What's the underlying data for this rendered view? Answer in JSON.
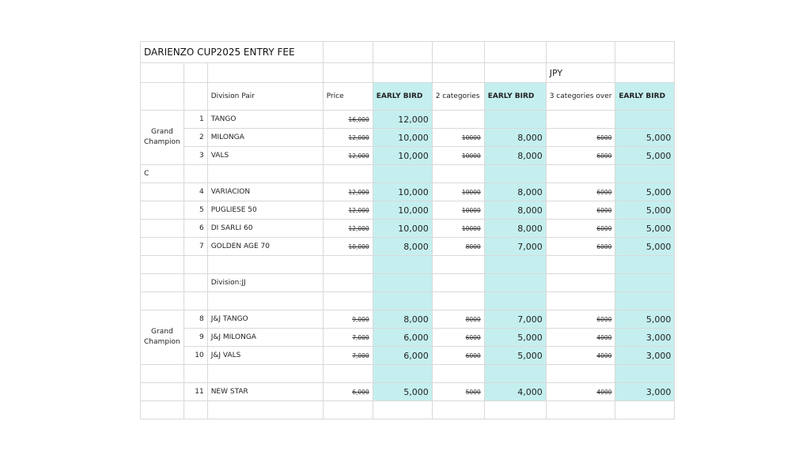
{
  "title": "DARIENZO CUP2025 ENTRY FEE",
  "currency": "JPY",
  "headers": {
    "division": "Division Pair",
    "price": "Price",
    "early_bird": "EARLY BIRD",
    "two_categories": "2 categories",
    "three_categories": "3 categories over"
  },
  "group_grand": "Grand Champion",
  "section_c": "C",
  "division_jj": "Division:JJ",
  "rows": {
    "r1": {
      "no": "1",
      "name": "TANGO",
      "price": "16,000",
      "eb1": "12,000",
      "cat2": "",
      "eb2": "",
      "cat3": "",
      "eb3": ""
    },
    "r2": {
      "no": "2",
      "name": "MILONGA",
      "price": "12,000",
      "eb1": "10,000",
      "cat2": "10000",
      "eb2": "8,000",
      "cat3": "6000",
      "eb3": "5,000"
    },
    "r3": {
      "no": "3",
      "name": "VALS",
      "price": "12,000",
      "eb1": "10,000",
      "cat2": "10000",
      "eb2": "8,000",
      "cat3": "6000",
      "eb3": "5,000"
    },
    "r4": {
      "no": "4",
      "name": "VARIACION",
      "price": "12,000",
      "eb1": "10,000",
      "cat2": "10000",
      "eb2": "8,000",
      "cat3": "6000",
      "eb3": "5,000"
    },
    "r5": {
      "no": "5",
      "name": "PUGLIESE 50",
      "price": "12,000",
      "eb1": "10,000",
      "cat2": "10000",
      "eb2": "8,000",
      "cat3": "6000",
      "eb3": "5,000"
    },
    "r6": {
      "no": "6",
      "name": "DI SARLI 60",
      "price": "12,000",
      "eb1": "10,000",
      "cat2": "10000",
      "eb2": "8,000",
      "cat3": "6000",
      "eb3": "5,000"
    },
    "r7": {
      "no": "7",
      "name": "GOLDEN AGE 70",
      "price": "10,000",
      "eb1": "8,000",
      "cat2": "8000",
      "eb2": "7,000",
      "cat3": "6000",
      "eb3": "5,000"
    },
    "r8": {
      "no": "8",
      "name": "J&J TANGO",
      "price": "9,000",
      "eb1": "8,000",
      "cat2": "8000",
      "eb2": "7,000",
      "cat3": "6000",
      "eb3": "5,000"
    },
    "r9": {
      "no": "9",
      "name": "J&J MILONGA",
      "price": "7,000",
      "eb1": "6,000",
      "cat2": "6000",
      "eb2": "5,000",
      "cat3": "4000",
      "eb3": "3,000"
    },
    "r10": {
      "no": "10",
      "name": "J&J VALS",
      "price": "7,000",
      "eb1": "6,000",
      "cat2": "6000",
      "eb2": "5,000",
      "cat3": "4000",
      "eb3": "3,000"
    },
    "r11": {
      "no": "11",
      "name": "NEW STAR",
      "price": "6,000",
      "eb1": "5,000",
      "cat2": "5000",
      "eb2": "4,000",
      "cat3": "4000",
      "eb3": "3,000"
    }
  },
  "colors": {
    "early_bird_fill": "#c5efef",
    "grid": "#d9d9d9"
  }
}
